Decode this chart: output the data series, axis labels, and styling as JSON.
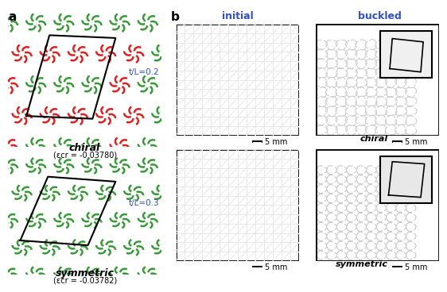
{
  "fig_width": 5.77,
  "fig_height": 3.51,
  "panel_a_label": "a",
  "panel_b_label": "b",
  "chiral_label": "chiral",
  "chiral_epsilon": "(εcr = -0.03780)",
  "symmetric_label": "symmetric",
  "symmetric_epsilon": "(εcr = -0.03782)",
  "initial_label": "initial",
  "buckled_label": "buckled",
  "tL02_label": "t/L=0.2",
  "tL03_label": "t/L=0.3",
  "scale_label": "5 mm",
  "chiral_bottom_label": "chiral",
  "symmetric_bottom_label": "symmetric",
  "green_color": "#3a9a3a",
  "red_color": "#dd2222",
  "white_color": "#ffffff",
  "black_color": "#000000",
  "blue_label_color": "#3050cc",
  "bg_color": "#ffffff",
  "label_fontsize": 9,
  "sublabel_fontsize": 7.5,
  "title_fontsize": 10,
  "italic_labels": true
}
